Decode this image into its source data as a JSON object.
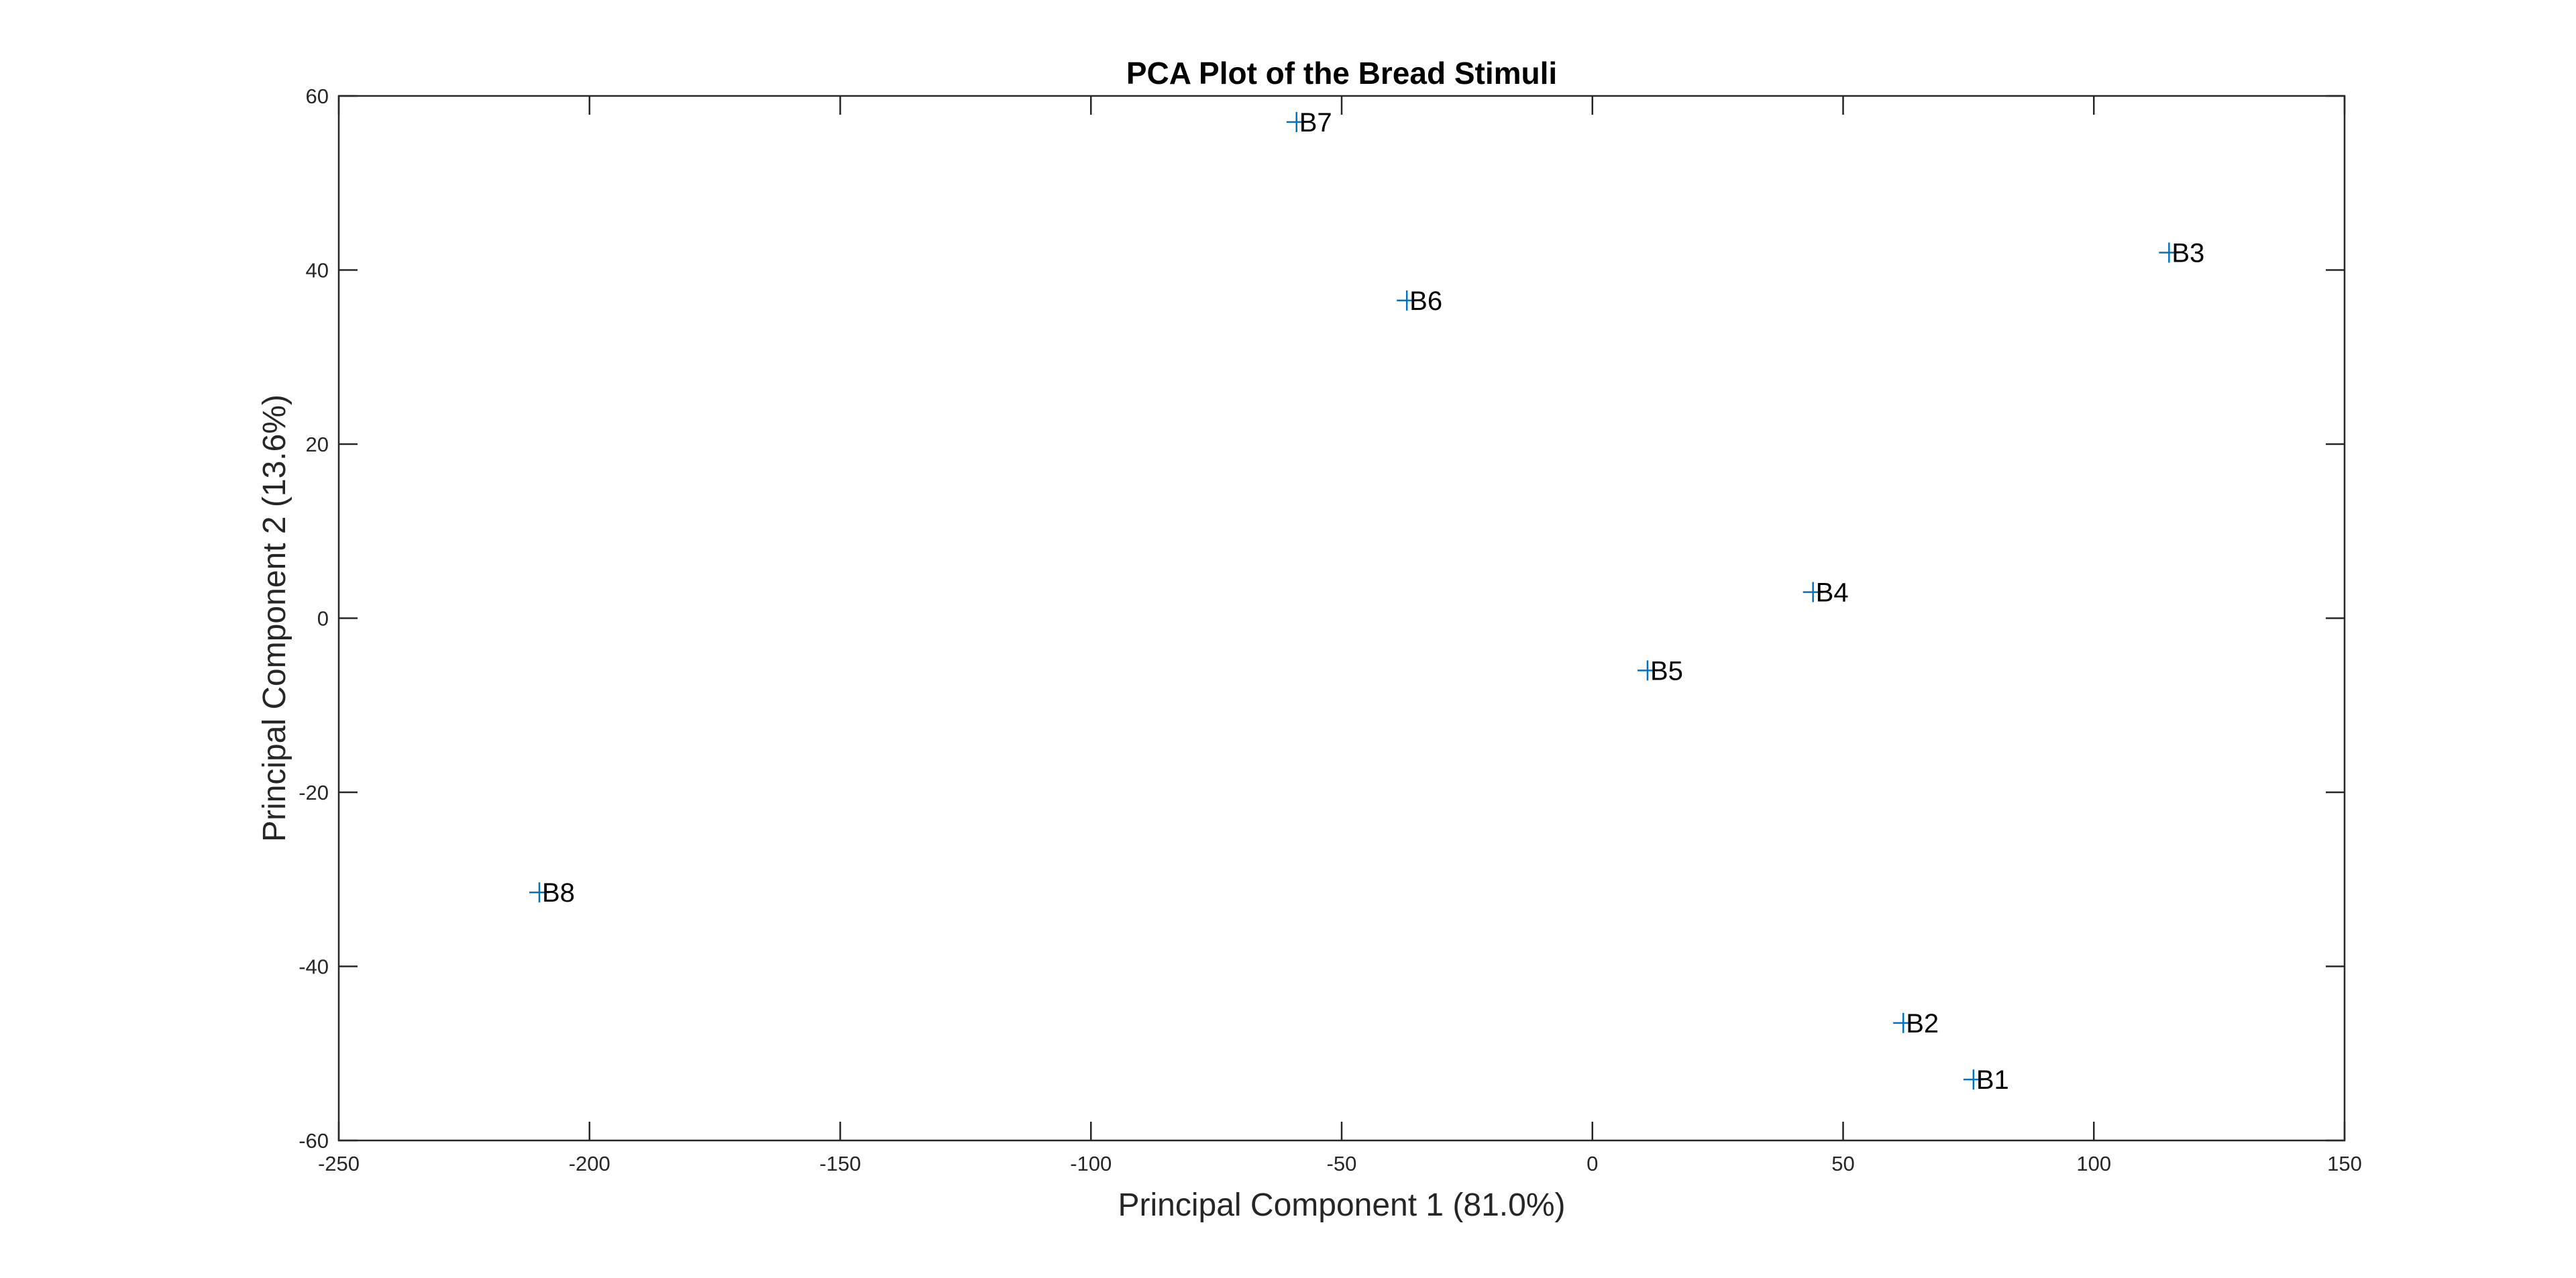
{
  "chart_data": {
    "type": "scatter",
    "title": "PCA Plot of the Bread Stimuli",
    "xlabel": "Principal Component 1 (81.0%)",
    "ylabel": "Principal Component 2 (13.6%)",
    "xlim": [
      -250,
      150
    ],
    "ylim": [
      -60,
      60
    ],
    "xticks": [
      -250,
      -200,
      -150,
      -100,
      -50,
      0,
      50,
      100,
      150
    ],
    "yticks": [
      -60,
      -40,
      -20,
      0,
      20,
      40,
      60
    ],
    "grid": false,
    "legend": "none",
    "marker": "+",
    "colors": {
      "marker": "#0072BD",
      "axes": "#262626",
      "background": "#ffffff"
    },
    "points": [
      {
        "label": "B1",
        "x": 76,
        "y": -53
      },
      {
        "label": "B2",
        "x": 62,
        "y": -46.5
      },
      {
        "label": "B3",
        "x": 115,
        "y": 42
      },
      {
        "label": "B4",
        "x": 44,
        "y": 3
      },
      {
        "label": "B5",
        "x": 11,
        "y": -6
      },
      {
        "label": "B6",
        "x": -37,
        "y": 36.5
      },
      {
        "label": "B7",
        "x": -59,
        "y": 57
      },
      {
        "label": "B8",
        "x": -210,
        "y": -31.5
      }
    ]
  }
}
